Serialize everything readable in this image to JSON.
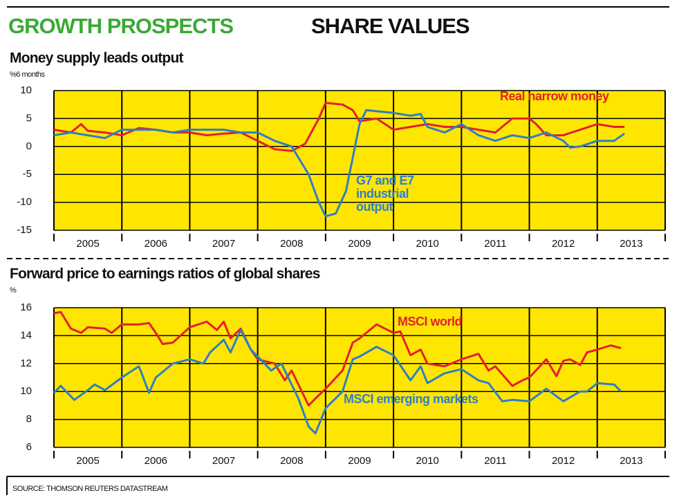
{
  "header": {
    "title_green": "GROWTH PROSPECTS",
    "title_black": "SHARE VALUES"
  },
  "source": "SOURCE: THOMSON REUTERS DATASTREAM",
  "chart_data": [
    {
      "type": "line",
      "title": "Money supply leads output",
      "y_unit": "%6 months",
      "xlim": [
        2005,
        2014
      ],
      "xticks": [
        2005,
        2006,
        2007,
        2008,
        2009,
        2010,
        2011,
        2012,
        2013,
        2014
      ],
      "year_labels": [
        2005,
        2006,
        2007,
        2008,
        2009,
        2010,
        2011,
        2012,
        2013
      ],
      "ylim": [
        -15,
        10
      ],
      "yticks": [
        10,
        5,
        0,
        -5,
        -10,
        -15
      ],
      "grid": true,
      "series": [
        {
          "name": "Real narrow money",
          "color": "#e3202b",
          "x": [
            2005,
            2005.25,
            2005.4,
            2005.5,
            2005.75,
            2006,
            2006.25,
            2006.5,
            2006.75,
            2007,
            2007.25,
            2007.5,
            2007.75,
            2008,
            2008.25,
            2008.5,
            2008.7,
            2008.9,
            2009,
            2009.25,
            2009.4,
            2009.5,
            2009.75,
            2010,
            2010.25,
            2010.5,
            2010.75,
            2011,
            2011.25,
            2011.5,
            2011.75,
            2012,
            2012.1,
            2012.25,
            2012.5,
            2012.75,
            2013,
            2013.25,
            2013.4
          ],
          "values": [
            3,
            2.5,
            4,
            2.8,
            2.5,
            2,
            3.3,
            3,
            2.5,
            2.5,
            2,
            2.3,
            2.5,
            1,
            -0.5,
            -0.8,
            0.5,
            5,
            7.8,
            7.5,
            6.5,
            4.5,
            5,
            3,
            3.5,
            4,
            3.5,
            3.5,
            3,
            2.5,
            5,
            5,
            4,
            2,
            2,
            3,
            4,
            3.5,
            3.5
          ]
        },
        {
          "name": "G7 and E7 industrial output",
          "color": "#2f7fc1",
          "x": [
            2005,
            2005.25,
            2005.5,
            2005.75,
            2006,
            2006.25,
            2006.5,
            2006.75,
            2007,
            2007.25,
            2007.5,
            2007.75,
            2008,
            2008.25,
            2008.5,
            2008.6,
            2008.75,
            2008.9,
            2009,
            2009.15,
            2009.3,
            2009.4,
            2009.5,
            2009.6,
            2009.75,
            2010,
            2010.25,
            2010.4,
            2010.5,
            2010.75,
            2011,
            2011.25,
            2011.5,
            2011.75,
            2012,
            2012.25,
            2012.5,
            2012.6,
            2012.75,
            2013,
            2013.25,
            2013.4
          ],
          "values": [
            2,
            2.5,
            2,
            1.5,
            3,
            3,
            3,
            2.5,
            3,
            3,
            3,
            2.5,
            2.5,
            1,
            0,
            -2,
            -5,
            -10,
            -12.5,
            -12,
            -8,
            -2,
            4,
            6.5,
            6.3,
            6,
            5.5,
            5.8,
            3.5,
            2.5,
            4,
            2,
            1,
            2,
            1.5,
            2.5,
            1,
            -0.2,
            0,
            1,
            1,
            2.3
          ]
        }
      ]
    },
    {
      "type": "line",
      "title": "Forward price to earnings ratios of global shares",
      "y_unit": "%",
      "xlim": [
        2005,
        2014
      ],
      "xticks": [
        2005,
        2006,
        2007,
        2008,
        2009,
        2010,
        2011,
        2012,
        2013,
        2014
      ],
      "year_labels": [
        2005,
        2006,
        2007,
        2008,
        2009,
        2010,
        2011,
        2012,
        2013
      ],
      "ylim": [
        6,
        16
      ],
      "yticks": [
        16,
        14,
        12,
        10,
        8,
        6
      ],
      "grid": true,
      "series": [
        {
          "name": "MSCI world",
          "color": "#e3202b",
          "x": [
            2005,
            2005.1,
            2005.25,
            2005.4,
            2005.5,
            2005.75,
            2005.85,
            2006,
            2006.25,
            2006.4,
            2006.5,
            2006.6,
            2006.75,
            2007,
            2007.25,
            2007.4,
            2007.5,
            2007.6,
            2007.75,
            2007.9,
            2008,
            2008.25,
            2008.4,
            2008.5,
            2008.6,
            2008.75,
            2008.85,
            2009,
            2009.25,
            2009.4,
            2009.5,
            2009.75,
            2010,
            2010.1,
            2010.25,
            2010.4,
            2010.5,
            2010.75,
            2011,
            2011.25,
            2011.4,
            2011.5,
            2011.75,
            2011.9,
            2012,
            2012.25,
            2012.4,
            2012.5,
            2012.6,
            2012.75,
            2012.85,
            2013,
            2013.2,
            2013.35
          ],
          "values": [
            15.6,
            15.7,
            14.5,
            14.2,
            14.6,
            14.5,
            14.2,
            14.8,
            14.8,
            14.9,
            14.2,
            13.4,
            13.5,
            14.6,
            15,
            14.4,
            15,
            13.8,
            14.5,
            13,
            12.3,
            12,
            10.8,
            11.5,
            10.5,
            9,
            9.5,
            10.2,
            11.5,
            13.5,
            13.8,
            14.8,
            14.2,
            14.3,
            12.6,
            13,
            12,
            11.8,
            12.3,
            12.7,
            11.5,
            11.8,
            10.4,
            10.8,
            11,
            12.3,
            11.1,
            12.2,
            12.3,
            11.9,
            12.8,
            13,
            13.3,
            13.1
          ]
        },
        {
          "name": "MSCI emerging markets",
          "color": "#2f7fc1",
          "x": [
            2005,
            2005.1,
            2005.3,
            2005.5,
            2005.6,
            2005.75,
            2006,
            2006.25,
            2006.3,
            2006.4,
            2006.5,
            2006.75,
            2007,
            2007.2,
            2007.3,
            2007.5,
            2007.6,
            2007.75,
            2007.9,
            2008,
            2008.2,
            2008.35,
            2008.5,
            2008.6,
            2008.75,
            2008.85,
            2009,
            2009.25,
            2009.4,
            2009.5,
            2009.75,
            2010,
            2010.25,
            2010.4,
            2010.5,
            2010.75,
            2011,
            2011.25,
            2011.4,
            2011.6,
            2011.75,
            2012,
            2012.25,
            2012.5,
            2012.75,
            2012.85,
            2013,
            2013.25,
            2013.35
          ],
          "values": [
            9.9,
            10.4,
            9.4,
            10.1,
            10.5,
            10.1,
            11,
            11.8,
            11.2,
            9.9,
            11,
            12,
            12.3,
            12,
            12.8,
            13.7,
            12.8,
            14.4,
            13,
            12.5,
            11.5,
            12,
            10.5,
            9.5,
            7.5,
            7,
            8.8,
            10,
            12.3,
            12.5,
            13.2,
            12.6,
            10.8,
            11.8,
            10.6,
            11.3,
            11.6,
            10.8,
            10.6,
            9.3,
            9.4,
            9.3,
            10.2,
            9.3,
            10,
            10,
            10.6,
            10.5,
            10
          ]
        }
      ]
    }
  ]
}
